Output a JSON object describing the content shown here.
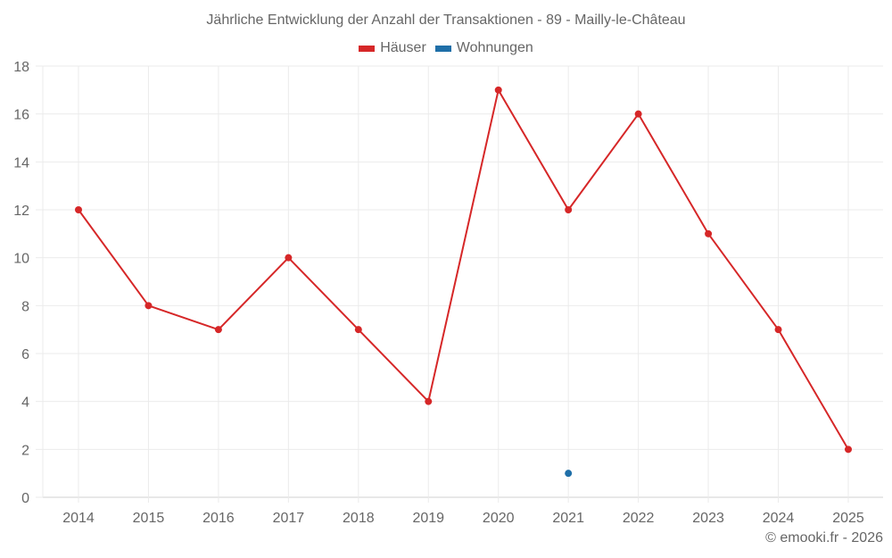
{
  "chart_data": {
    "type": "line",
    "title": "Jährliche Entwicklung der Anzahl der Transaktionen - 89 - Mailly-le-Château",
    "xlabel": "",
    "ylabel": "",
    "categories": [
      "2014",
      "2015",
      "2016",
      "2017",
      "2018",
      "2019",
      "2020",
      "2021",
      "2022",
      "2023",
      "2024",
      "2025"
    ],
    "series": [
      {
        "name": "Häuser",
        "color": "#d62728",
        "values": [
          12,
          8,
          7,
          10,
          7,
          4,
          17,
          12,
          16,
          11,
          7,
          2
        ]
      },
      {
        "name": "Wohnungen",
        "color": "#1f6fa8",
        "values": [
          null,
          null,
          null,
          null,
          null,
          null,
          null,
          1,
          null,
          null,
          null,
          null
        ]
      }
    ],
    "ylim": [
      0,
      18
    ],
    "yticks": [
      0,
      2,
      4,
      6,
      8,
      10,
      12,
      14,
      16,
      18
    ],
    "grid": true,
    "legend_position": "top"
  },
  "credit": "© emooki.fr - 2026"
}
